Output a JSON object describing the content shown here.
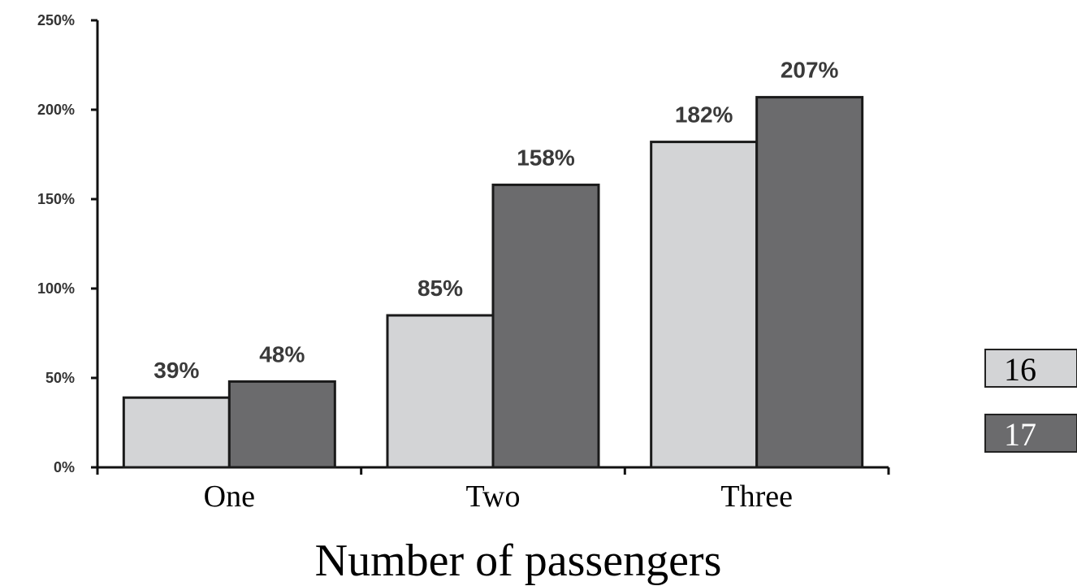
{
  "chart_data": {
    "type": "bar",
    "categories": [
      "One",
      "Two",
      "Three"
    ],
    "series": [
      {
        "name": "16",
        "values": [
          39,
          85,
          182
        ],
        "labels": [
          "39%",
          "85%",
          "182%"
        ],
        "color": "#d3d4d6"
      },
      {
        "name": "17",
        "values": [
          48,
          158,
          207
        ],
        "labels": [
          "48%",
          "158%",
          "207%"
        ],
        "color": "#6b6b6d"
      }
    ],
    "xlabel": "Number of passengers",
    "ylabel": "",
    "ylim": [
      0,
      250
    ],
    "yticks": [
      0,
      50,
      100,
      150,
      200,
      250
    ],
    "ytick_labels": [
      "0%",
      "50%",
      "100%",
      "150%",
      "200%",
      "250%"
    ],
    "grid": false,
    "legend_position": "right"
  }
}
